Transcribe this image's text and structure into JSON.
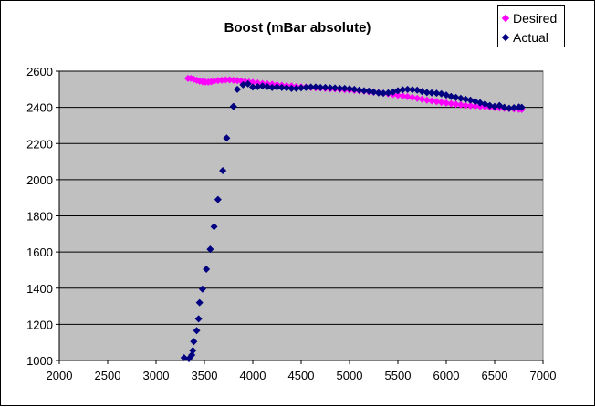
{
  "chart_data": {
    "type": "scatter",
    "title": "Boost (mBar absolute)",
    "xlabel": "",
    "ylabel": "",
    "xlim": [
      2000,
      7000
    ],
    "ylim": [
      1000,
      2600
    ],
    "x_ticks": [
      2000,
      2500,
      3000,
      3500,
      4000,
      4500,
      5000,
      5500,
      6000,
      6500,
      7000
    ],
    "y_ticks": [
      1000,
      1200,
      1400,
      1600,
      1800,
      2000,
      2200,
      2400,
      2600
    ],
    "grid": "horizontal",
    "plot_background": "#C0C0C0",
    "legend_position": "top-right",
    "series": [
      {
        "name": "Desired",
        "color": "#FF00FF",
        "marker": "diamond",
        "points": [
          [
            3330,
            2560
          ],
          [
            3360,
            2560
          ],
          [
            3390,
            2555
          ],
          [
            3420,
            2550
          ],
          [
            3450,
            2545
          ],
          [
            3480,
            2542
          ],
          [
            3510,
            2540
          ],
          [
            3540,
            2540
          ],
          [
            3570,
            2542
          ],
          [
            3600,
            2545
          ],
          [
            3640,
            2548
          ],
          [
            3680,
            2550
          ],
          [
            3720,
            2552
          ],
          [
            3760,
            2552
          ],
          [
            3800,
            2550
          ],
          [
            3840,
            2548
          ],
          [
            3880,
            2545
          ],
          [
            3920,
            2543
          ],
          [
            3960,
            2540
          ],
          [
            4000,
            2538
          ],
          [
            4050,
            2535
          ],
          [
            4100,
            2532
          ],
          [
            4150,
            2530
          ],
          [
            4200,
            2528
          ],
          [
            4250,
            2525
          ],
          [
            4300,
            2522
          ],
          [
            4350,
            2520
          ],
          [
            4400,
            2518
          ],
          [
            4450,
            2515
          ],
          [
            4500,
            2513
          ],
          [
            4550,
            2512
          ],
          [
            4600,
            2510
          ],
          [
            4650,
            2508
          ],
          [
            4700,
            2507
          ],
          [
            4750,
            2505
          ],
          [
            4800,
            2503
          ],
          [
            4850,
            2502
          ],
          [
            4900,
            2500
          ],
          [
            4950,
            2498
          ],
          [
            5000,
            2496
          ],
          [
            5050,
            2494
          ],
          [
            5100,
            2492
          ],
          [
            5150,
            2490
          ],
          [
            5200,
            2487
          ],
          [
            5250,
            2484
          ],
          [
            5300,
            2481
          ],
          [
            5350,
            2478
          ],
          [
            5400,
            2475
          ],
          [
            5450,
            2471
          ],
          [
            5500,
            2467
          ],
          [
            5550,
            2463
          ],
          [
            5600,
            2459
          ],
          [
            5650,
            2455
          ],
          [
            5700,
            2450
          ],
          [
            5750,
            2445
          ],
          [
            5800,
            2440
          ],
          [
            5850,
            2436
          ],
          [
            5900,
            2432
          ],
          [
            5950,
            2428
          ],
          [
            6000,
            2424
          ],
          [
            6050,
            2420
          ],
          [
            6100,
            2417
          ],
          [
            6150,
            2414
          ],
          [
            6200,
            2411
          ],
          [
            6250,
            2409
          ],
          [
            6300,
            2407
          ],
          [
            6350,
            2405
          ],
          [
            6400,
            2403
          ],
          [
            6450,
            2401
          ],
          [
            6500,
            2399
          ],
          [
            6550,
            2397
          ],
          [
            6600,
            2395
          ],
          [
            6650,
            2393
          ],
          [
            6700,
            2391
          ],
          [
            6750,
            2389
          ],
          [
            6780,
            2388
          ]
        ]
      },
      {
        "name": "Actual",
        "color": "#000080",
        "marker": "diamond",
        "points": [
          [
            3290,
            1015
          ],
          [
            3340,
            1010
          ],
          [
            3370,
            1030
          ],
          [
            3380,
            1055
          ],
          [
            3390,
            1105
          ],
          [
            3420,
            1165
          ],
          [
            3440,
            1230
          ],
          [
            3450,
            1320
          ],
          [
            3480,
            1395
          ],
          [
            3520,
            1505
          ],
          [
            3560,
            1615
          ],
          [
            3600,
            1740
          ],
          [
            3640,
            1890
          ],
          [
            3690,
            2050
          ],
          [
            3730,
            2230
          ],
          [
            3800,
            2405
          ],
          [
            3840,
            2500
          ],
          [
            3900,
            2525
          ],
          [
            3950,
            2530
          ],
          [
            4000,
            2512
          ],
          [
            4050,
            2515
          ],
          [
            4100,
            2518
          ],
          [
            4150,
            2515
          ],
          [
            4200,
            2510
          ],
          [
            4250,
            2512
          ],
          [
            4300,
            2510
          ],
          [
            4350,
            2508
          ],
          [
            4400,
            2505
          ],
          [
            4450,
            2505
          ],
          [
            4500,
            2508
          ],
          [
            4550,
            2510
          ],
          [
            4600,
            2512
          ],
          [
            4650,
            2512
          ],
          [
            4700,
            2510
          ],
          [
            4750,
            2510
          ],
          [
            4800,
            2508
          ],
          [
            4850,
            2507
          ],
          [
            4900,
            2505
          ],
          [
            4950,
            2505
          ],
          [
            5000,
            2503
          ],
          [
            5050,
            2500
          ],
          [
            5100,
            2495
          ],
          [
            5150,
            2492
          ],
          [
            5200,
            2490
          ],
          [
            5250,
            2485
          ],
          [
            5300,
            2480
          ],
          [
            5350,
            2478
          ],
          [
            5400,
            2480
          ],
          [
            5450,
            2485
          ],
          [
            5500,
            2492
          ],
          [
            5550,
            2498
          ],
          [
            5600,
            2500
          ],
          [
            5650,
            2498
          ],
          [
            5700,
            2495
          ],
          [
            5750,
            2488
          ],
          [
            5800,
            2482
          ],
          [
            5850,
            2480
          ],
          [
            5900,
            2478
          ],
          [
            5950,
            2475
          ],
          [
            6000,
            2468
          ],
          [
            6050,
            2460
          ],
          [
            6100,
            2455
          ],
          [
            6150,
            2450
          ],
          [
            6200,
            2445
          ],
          [
            6250,
            2440
          ],
          [
            6300,
            2432
          ],
          [
            6350,
            2425
          ],
          [
            6400,
            2418
          ],
          [
            6450,
            2410
          ],
          [
            6500,
            2405
          ],
          [
            6550,
            2410
          ],
          [
            6600,
            2400
          ],
          [
            6650,
            2395
          ],
          [
            6700,
            2398
          ],
          [
            6750,
            2402
          ],
          [
            6780,
            2400
          ]
        ]
      }
    ]
  }
}
